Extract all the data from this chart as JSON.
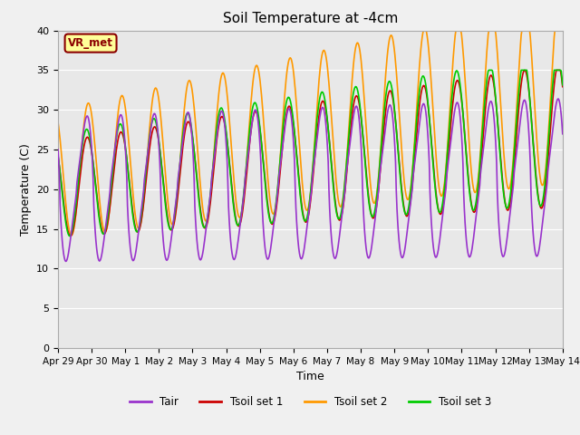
{
  "title": "Soil Temperature at -4cm",
  "xlabel": "Time",
  "ylabel": "Temperature (C)",
  "ylim": [
    0,
    40
  ],
  "fig_bg_color": "#f0f0f0",
  "plot_bg_color": "#e8e8e8",
  "line_colors": {
    "Tair": "#9933cc",
    "Tsoil_set1": "#cc0000",
    "Tsoil_set2": "#ff9900",
    "Tsoil_set3": "#00cc00"
  },
  "annotation_text": "VR_met",
  "annotation_color": "#8b0000",
  "annotation_bg": "#ffff99",
  "xtick_labels": [
    "Apr 29",
    "Apr 30",
    "May 1",
    "May 2",
    "May 3",
    "May 4",
    "May 5",
    "May 6",
    "May 7",
    "May 8",
    "May 9",
    "May 10",
    "May 11",
    "May 12",
    "May 13",
    "May 14"
  ],
  "xtick_positions": [
    0,
    1,
    2,
    3,
    4,
    5,
    6,
    7,
    8,
    9,
    10,
    11,
    12,
    13,
    14,
    15
  ],
  "ytick_positions": [
    0,
    5,
    10,
    15,
    20,
    25,
    30,
    35,
    40
  ],
  "line_width": 1.2,
  "days": 15
}
